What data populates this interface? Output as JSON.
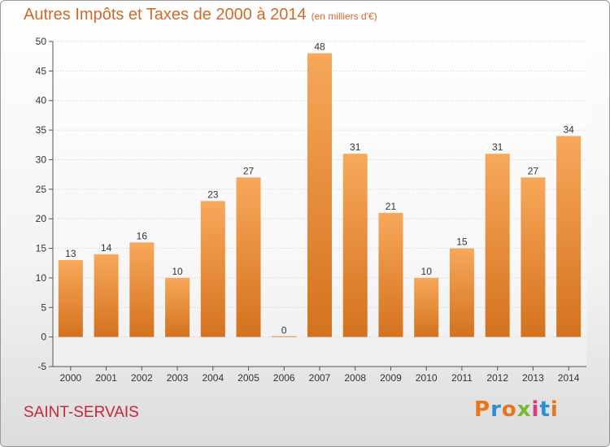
{
  "header": {
    "title": "Autres Impôts et Taxes de 2000 à 2014",
    "subtitle": "(en milliers d'€)"
  },
  "footer": {
    "place": "SAINT-SERVAIS",
    "logo_text": "Proxiti",
    "logo_colors": [
      "#e8751a",
      "#2a8fd6",
      "#e8751a",
      "#7cb82f",
      "#d93a7a",
      "#2a8fd6",
      "#e8751a"
    ]
  },
  "colors": {
    "bar_top": "#f7a85a",
    "bar_bottom": "#d4721e",
    "grid": "#d0d0d0",
    "axis_text": "#333333"
  },
  "chart_data": {
    "type": "bar",
    "title": "Autres Impôts et Taxes de 2000 à 2014",
    "subtitle": "(en milliers d'€)",
    "categories": [
      "2000",
      "2001",
      "2002",
      "2003",
      "2004",
      "2005",
      "2006",
      "2007",
      "2008",
      "2009",
      "2010",
      "2011",
      "2012",
      "2013",
      "2014"
    ],
    "values": [
      13,
      14,
      16,
      10,
      23,
      27,
      0,
      48,
      31,
      21,
      10,
      15,
      31,
      27,
      34
    ],
    "ylim": [
      -5,
      50
    ],
    "yticks": [
      -5,
      0,
      5,
      10,
      15,
      20,
      25,
      30,
      35,
      40,
      45,
      50
    ],
    "grid": true,
    "xlabel": "",
    "ylabel": ""
  }
}
